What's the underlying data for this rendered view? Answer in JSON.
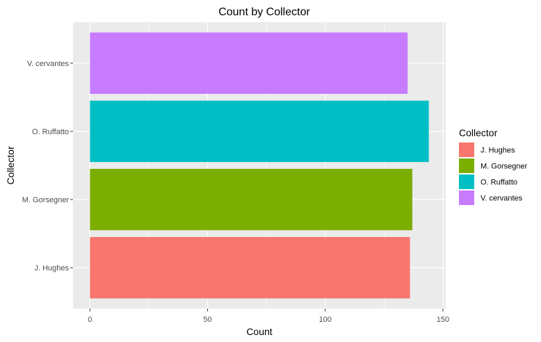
{
  "chart_data": {
    "type": "bar",
    "orientation": "horizontal",
    "title": "Count by Collector",
    "xlabel": "Count",
    "ylabel": "Collector",
    "xlim": [
      -7.2,
      151.2
    ],
    "xticks": [
      0,
      50,
      100,
      150
    ],
    "grid": true,
    "legend": {
      "title": "Collector",
      "placement": "right"
    },
    "categories": [
      "J. Hughes",
      "M. Gorsegner",
      "O. Ruffatto",
      "V. cervantes"
    ],
    "values": [
      136,
      137,
      144,
      135
    ],
    "colors": [
      "#F8766D",
      "#7CAE00",
      "#00BFC4",
      "#C77CFF"
    ]
  }
}
